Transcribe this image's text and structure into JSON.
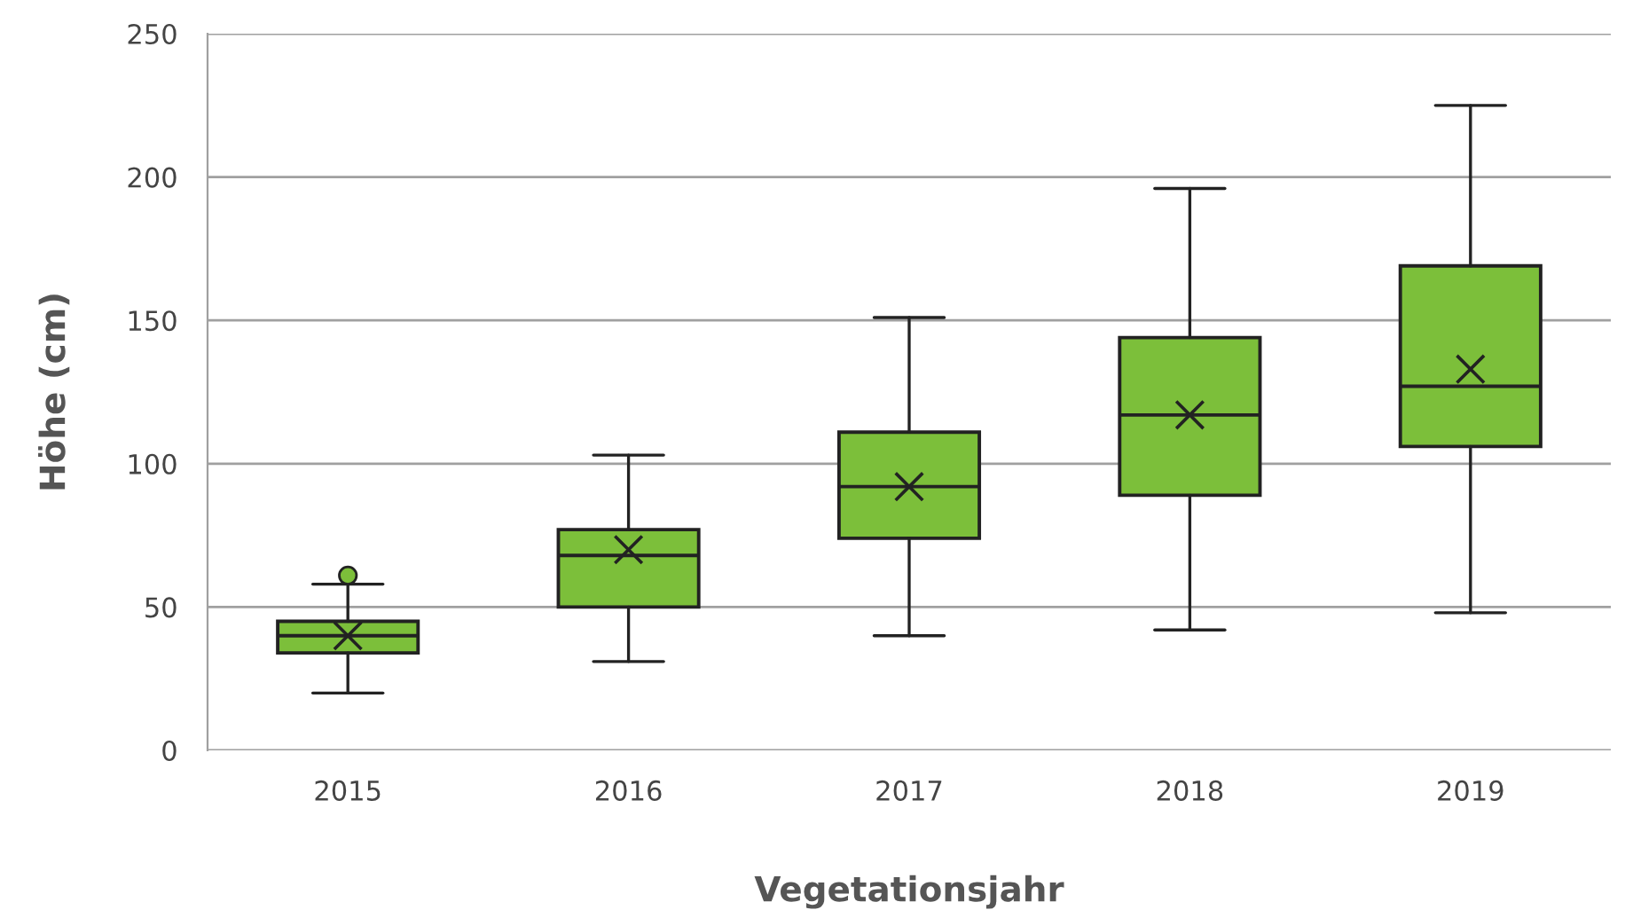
{
  "chart_data": {
    "type": "box",
    "xlabel": "Vegetationsjahr",
    "ylabel": "Höhe (cm)",
    "categories": [
      "2015",
      "2016",
      "2017",
      "2018",
      "2019"
    ],
    "color": "#7cbf3a",
    "marker": "cross",
    "boxes": [
      {
        "low": 20,
        "q1": 34,
        "median": 40,
        "q3": 45,
        "high": 58,
        "mean": 40,
        "outliers": [
          61
        ]
      },
      {
        "low": 31,
        "q1": 50,
        "median": 68,
        "q3": 77,
        "high": 103,
        "mean": 70
      },
      {
        "low": 40,
        "q1": 74,
        "median": 92,
        "q3": 111,
        "high": 151,
        "mean": 92
      },
      {
        "low": 42,
        "q1": 89,
        "median": 117,
        "q3": 144,
        "high": 196,
        "mean": 117
      },
      {
        "low": 48,
        "q1": 106,
        "median": 127,
        "q3": 169,
        "high": 225,
        "mean": 133
      }
    ],
    "ylim": [
      0,
      250
    ],
    "yticks": [
      0,
      50,
      100,
      150,
      200,
      250
    ],
    "grid": "y"
  }
}
